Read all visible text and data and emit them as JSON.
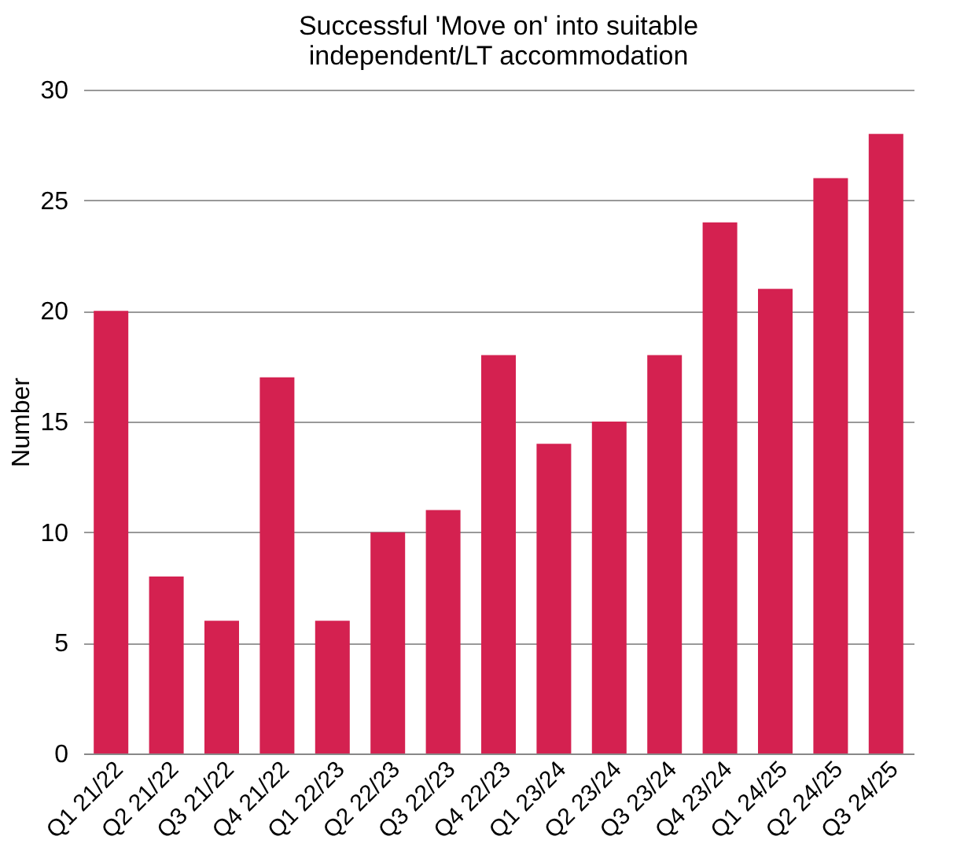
{
  "chart_data": {
    "type": "bar",
    "title": [
      "Successful 'Move on' into suitable",
      "independent/LT accommodation"
    ],
    "ylabel": "Number",
    "categories": [
      "Q1 21/22",
      "Q2 21/22",
      "Q3 21/22",
      "Q4 21/22",
      "Q1 22/23",
      "Q2 22/23",
      "Q3 22/23",
      "Q4 22/23",
      "Q1 23/24",
      "Q2 23/24",
      "Q3 23/24",
      "Q4 23/24",
      "Q1 24/25",
      "Q2 24/25",
      "Q3 24/25"
    ],
    "values": [
      20,
      8,
      6,
      17,
      6,
      10,
      11,
      18,
      14,
      15,
      18,
      24,
      21,
      26,
      28
    ],
    "color": "#d42150",
    "ylim": [
      0,
      30
    ],
    "yticks": [
      0,
      5,
      10,
      15,
      20,
      25,
      30
    ],
    "grid": "y"
  }
}
